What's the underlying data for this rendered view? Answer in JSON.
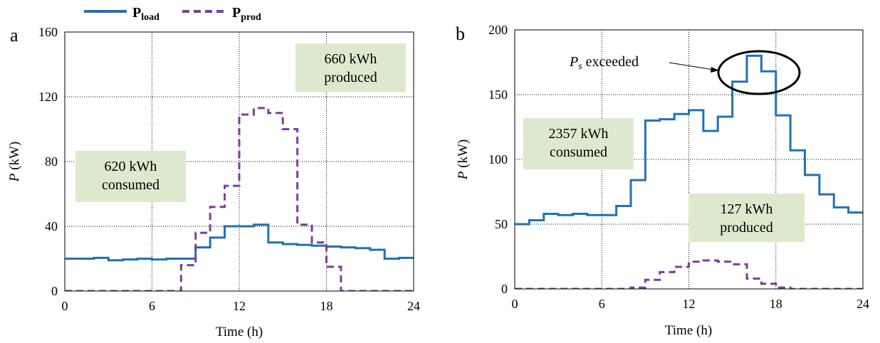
{
  "legend": {
    "load": {
      "main": "P",
      "sub": "load"
    },
    "prod": {
      "main": "P",
      "sub": "prod"
    }
  },
  "colors": {
    "load": "#2171b5",
    "prod": "#7b3f98",
    "annotation_box": "#dde9cd"
  },
  "chart_data": [
    {
      "type": "line",
      "step": true,
      "panel_label": "a",
      "xlabel": "Time (h)",
      "ylabel_symbol": "P",
      "ylabel_unit": " (kW)",
      "xlim": [
        0,
        24
      ],
      "ylim": [
        0,
        160
      ],
      "xticks": [
        0,
        6,
        12,
        18,
        24
      ],
      "yticks": [
        0,
        40,
        80,
        120,
        160
      ],
      "grid": true,
      "series": [
        {
          "key": "load",
          "style": "solid",
          "x": [
            0,
            1,
            2,
            3,
            4,
            5,
            6,
            7,
            8,
            9,
            10,
            11,
            12,
            13,
            14,
            15,
            16,
            17,
            18,
            19,
            20,
            21,
            22,
            23,
            24
          ],
          "y": [
            20,
            20,
            20.5,
            19,
            19.5,
            20,
            19.5,
            20,
            20,
            27,
            33,
            40,
            40,
            41,
            30,
            29,
            28.5,
            28,
            27.5,
            27,
            26.5,
            25.5,
            20,
            20.5,
            20.5
          ]
        },
        {
          "key": "prod",
          "style": "dashed",
          "x": [
            0,
            1,
            2,
            3,
            4,
            5,
            6,
            7,
            8,
            9,
            10,
            11,
            12,
            13,
            14,
            15,
            16,
            17,
            18,
            19,
            20,
            21,
            22,
            23,
            24
          ],
          "y": [
            0,
            0,
            0,
            0,
            0,
            0,
            0,
            0,
            16,
            36,
            52,
            65,
            109,
            113,
            110,
            100,
            41,
            30,
            15,
            0,
            0,
            0,
            0,
            0,
            0
          ]
        }
      ],
      "annotations": [
        {
          "lines": [
            "620 kWh",
            "consumed"
          ]
        },
        {
          "lines": [
            "660 kWh",
            "produced"
          ]
        }
      ]
    },
    {
      "type": "line",
      "step": true,
      "panel_label": "b",
      "xlabel": "Time (h)",
      "ylabel_symbol": "P",
      "ylabel_unit": " (kW)",
      "xlim": [
        0,
        24
      ],
      "ylim": [
        0,
        200
      ],
      "xticks": [
        0,
        6,
        12,
        18,
        24
      ],
      "yticks": [
        0,
        50,
        100,
        150,
        200
      ],
      "grid": true,
      "series": [
        {
          "key": "load",
          "style": "solid",
          "x": [
            0,
            1,
            2,
            3,
            4,
            5,
            6,
            7,
            8,
            9,
            10,
            11,
            12,
            13,
            14,
            15,
            16,
            17,
            18,
            19,
            20,
            21,
            22,
            23,
            24
          ],
          "y": [
            50,
            53,
            58,
            57,
            58,
            57,
            57,
            64,
            84,
            130,
            131,
            135,
            138,
            122,
            133,
            160,
            180,
            168,
            134,
            107,
            88,
            73,
            63,
            59,
            59
          ]
        },
        {
          "key": "prod",
          "style": "dashed",
          "x": [
            0,
            1,
            2,
            3,
            4,
            5,
            6,
            7,
            8,
            9,
            10,
            11,
            12,
            13,
            14,
            15,
            16,
            17,
            18,
            19,
            20,
            21,
            22,
            23,
            24
          ],
          "y": [
            0,
            0,
            0,
            0,
            0,
            0,
            0,
            0,
            1,
            7,
            13,
            17,
            21,
            22,
            21,
            19,
            8,
            4,
            1,
            0,
            0,
            0,
            0,
            0,
            0
          ]
        }
      ],
      "annotations": [
        {
          "lines": [
            "2357 kWh",
            "consumed"
          ]
        },
        {
          "lines": [
            "127 kWh",
            "produced"
          ]
        }
      ],
      "callout": {
        "symbol": "P",
        "subscript": "s",
        "text": " exceeded"
      }
    }
  ]
}
